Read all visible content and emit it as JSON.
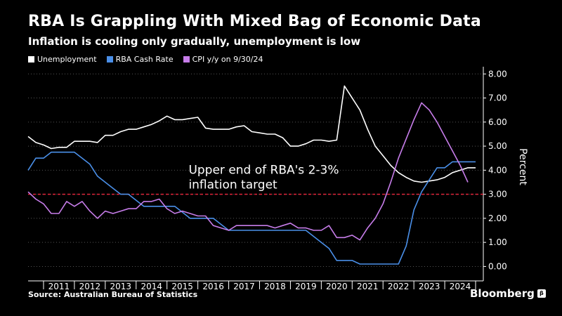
{
  "header": {
    "title": "RBA Is Grappling With Mixed Bag of Economic Data",
    "subtitle": "Inflation is cooling only gradually, unemployment is low"
  },
  "legend": [
    {
      "label": "Unemployment",
      "color": "#ffffff"
    },
    {
      "label": "RBA Cash Rate",
      "color": "#4a8fe8"
    },
    {
      "label": "CPI y/y on 9/30/24",
      "color": "#c77dea"
    }
  ],
  "footer": {
    "source": "Source: Australian Bureau of Statistics",
    "brand": "Bloomberg",
    "brand_icon": "β"
  },
  "chart_data": {
    "type": "line",
    "title": "RBA Is Grappling With Mixed Bag of Economic Data",
    "subtitle": "Inflation is cooling only gradually, unemployment is low",
    "ylabel": "Percent",
    "xlabel": "",
    "ylim": [
      -0.6,
      8.3
    ],
    "xlim": [
      2010.0,
      2024.75
    ],
    "y_ticks": [
      "8.00",
      "7.00",
      "6.00",
      "5.00",
      "4.00",
      "3.00",
      "2.00",
      "1.00",
      "0.00"
    ],
    "y_tick_values": [
      8,
      7,
      6,
      5,
      4,
      3,
      2,
      1,
      0
    ],
    "x_ticks": [
      "2011",
      "2012",
      "2013",
      "2014",
      "2015",
      "2016",
      "2017",
      "2018",
      "2019",
      "2020",
      "2021",
      "2022",
      "2023",
      "2024"
    ],
    "x_tick_values": [
      2011,
      2012,
      2013,
      2014,
      2015,
      2016,
      2017,
      2018,
      2019,
      2020,
      2021,
      2022,
      2023,
      2024
    ],
    "reference_line": {
      "value": 3.0,
      "color": "#e0243a",
      "style": "dashed"
    },
    "annotation": {
      "text_line1": "Upper end of RBA's 2-3%",
      "text_line2": "inflation target",
      "x": 2015.2,
      "y": 3.85
    },
    "series": [
      {
        "name": "Unemployment",
        "color": "#ffffff",
        "x": [
          2010.0,
          2010.25,
          2010.5,
          2010.75,
          2011.0,
          2011.25,
          2011.5,
          2011.75,
          2012.0,
          2012.25,
          2012.5,
          2012.75,
          2013.0,
          2013.25,
          2013.5,
          2013.75,
          2014.0,
          2014.25,
          2014.5,
          2014.75,
          2015.0,
          2015.25,
          2015.5,
          2015.75,
          2016.0,
          2016.25,
          2016.5,
          2016.75,
          2017.0,
          2017.25,
          2017.5,
          2017.75,
          2018.0,
          2018.25,
          2018.5,
          2018.75,
          2019.0,
          2019.25,
          2019.5,
          2019.75,
          2020.0,
          2020.25,
          2020.5,
          2020.75,
          2021.0,
          2021.25,
          2021.5,
          2021.75,
          2022.0,
          2022.25,
          2022.5,
          2022.75,
          2023.0,
          2023.25,
          2023.5,
          2023.75,
          2024.0,
          2024.25,
          2024.5
        ],
        "values": [
          5.4,
          5.15,
          5.05,
          4.9,
          4.95,
          4.95,
          5.2,
          5.2,
          5.2,
          5.15,
          5.45,
          5.45,
          5.6,
          5.7,
          5.7,
          5.8,
          5.9,
          6.05,
          6.25,
          6.1,
          6.1,
          6.15,
          6.2,
          5.75,
          5.7,
          5.7,
          5.7,
          5.8,
          5.85,
          5.6,
          5.55,
          5.5,
          5.5,
          5.35,
          5.0,
          5.0,
          5.1,
          5.25,
          5.25,
          5.2,
          5.25,
          7.5,
          7.0,
          6.5,
          5.7,
          5.0,
          4.6,
          4.2,
          3.9,
          3.7,
          3.55,
          3.5,
          3.55,
          3.6,
          3.7,
          3.9,
          4.0,
          4.1,
          4.1
        ]
      },
      {
        "name": "RBA Cash Rate",
        "color": "#4a8fe8",
        "x": [
          2010.0,
          2010.25,
          2010.5,
          2010.75,
          2011.0,
          2011.25,
          2011.5,
          2011.75,
          2012.0,
          2012.25,
          2012.5,
          2012.75,
          2013.0,
          2013.25,
          2013.5,
          2013.75,
          2014.0,
          2014.25,
          2014.5,
          2014.75,
          2015.0,
          2015.25,
          2015.5,
          2015.75,
          2016.0,
          2016.25,
          2016.5,
          2016.75,
          2017.0,
          2017.5,
          2018.0,
          2018.5,
          2019.0,
          2019.25,
          2019.5,
          2019.75,
          2020.0,
          2020.25,
          2020.5,
          2020.75,
          2021.0,
          2021.5,
          2022.0,
          2022.25,
          2022.5,
          2022.75,
          2023.0,
          2023.25,
          2023.5,
          2023.75,
          2024.0,
          2024.5
        ],
        "values": [
          4.0,
          4.5,
          4.5,
          4.75,
          4.75,
          4.75,
          4.75,
          4.5,
          4.25,
          3.75,
          3.5,
          3.25,
          3.0,
          3.0,
          2.75,
          2.5,
          2.5,
          2.5,
          2.5,
          2.5,
          2.25,
          2.0,
          2.0,
          2.0,
          2.0,
          1.75,
          1.5,
          1.5,
          1.5,
          1.5,
          1.5,
          1.5,
          1.5,
          1.25,
          1.0,
          0.75,
          0.25,
          0.25,
          0.25,
          0.1,
          0.1,
          0.1,
          0.1,
          0.85,
          2.35,
          3.1,
          3.6,
          4.1,
          4.1,
          4.35,
          4.35,
          4.35
        ]
      },
      {
        "name": "CPI y/y on 9/30/24",
        "color": "#c77dea",
        "x": [
          2010.0,
          2010.25,
          2010.5,
          2010.75,
          2011.0,
          2011.25,
          2011.5,
          2011.75,
          2012.0,
          2012.25,
          2012.5,
          2012.75,
          2013.0,
          2013.25,
          2013.5,
          2013.75,
          2014.0,
          2014.25,
          2014.5,
          2014.75,
          2015.0,
          2015.25,
          2015.5,
          2015.75,
          2016.0,
          2016.25,
          2016.5,
          2016.75,
          2017.0,
          2017.25,
          2017.5,
          2017.75,
          2018.0,
          2018.25,
          2018.5,
          2018.75,
          2019.0,
          2019.25,
          2019.5,
          2019.75,
          2020.0,
          2020.25,
          2020.5,
          2020.75,
          2021.0,
          2021.25,
          2021.5,
          2021.75,
          2022.0,
          2022.25,
          2022.5,
          2022.75,
          2023.0,
          2023.25,
          2023.5,
          2023.75,
          2024.0,
          2024.25
        ],
        "values": [
          3.1,
          2.8,
          2.6,
          2.2,
          2.2,
          2.7,
          2.5,
          2.7,
          2.3,
          2.0,
          2.3,
          2.2,
          2.3,
          2.4,
          2.4,
          2.7,
          2.7,
          2.8,
          2.4,
          2.2,
          2.3,
          2.2,
          2.1,
          2.1,
          1.7,
          1.6,
          1.5,
          1.7,
          1.7,
          1.7,
          1.7,
          1.7,
          1.6,
          1.7,
          1.8,
          1.6,
          1.6,
          1.5,
          1.5,
          1.7,
          1.2,
          1.2,
          1.3,
          1.1,
          1.6,
          2.0,
          2.6,
          3.5,
          4.5,
          5.3,
          6.1,
          6.8,
          6.5,
          6.0,
          5.4,
          4.8,
          4.2,
          3.5
        ]
      }
    ]
  }
}
